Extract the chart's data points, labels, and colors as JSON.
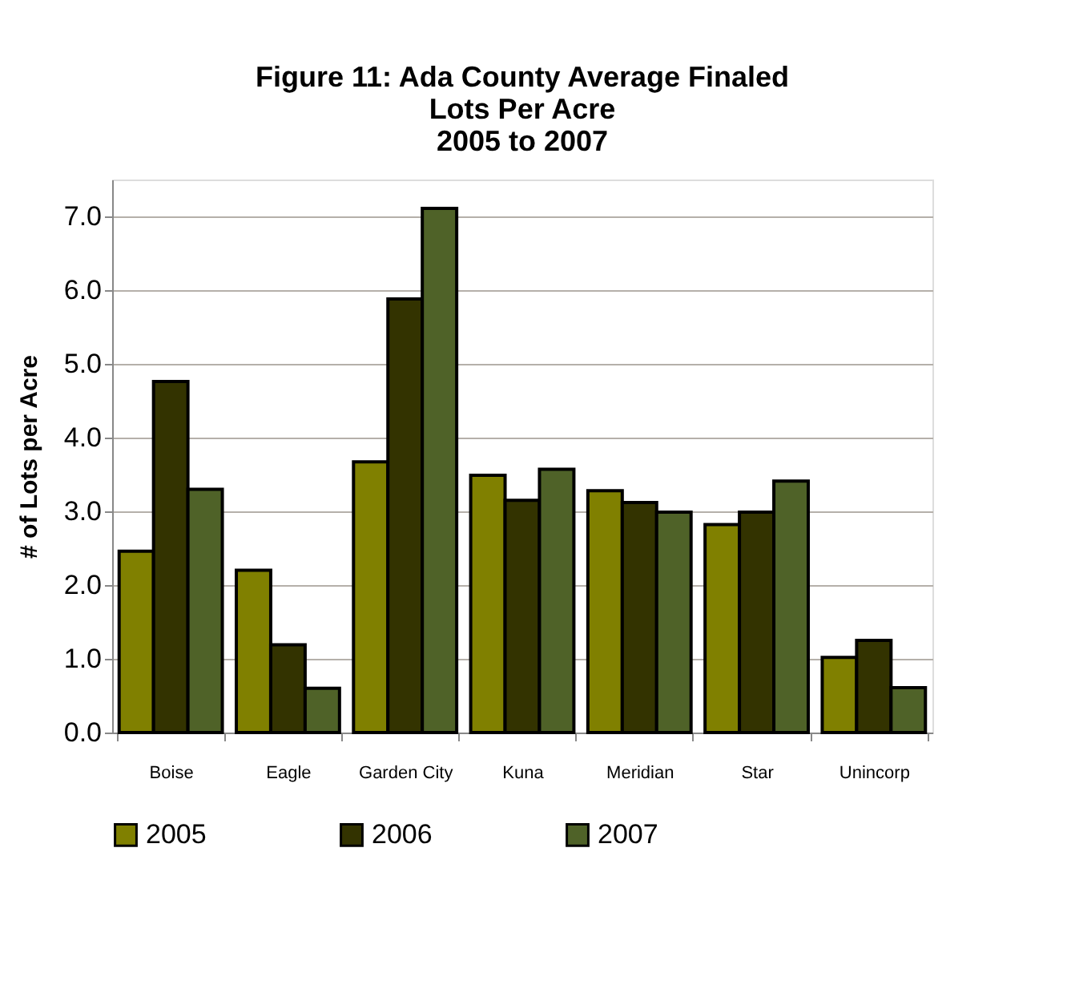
{
  "chart_data": {
    "type": "bar",
    "title": "Figure 11: Ada County Average Finaled\nLots Per Acre\n2005 to 2007",
    "ylabel": "# of Lots per Acre",
    "categories": [
      "Boise",
      "Eagle",
      "Garden City",
      "Kuna",
      "Meridian",
      "Star",
      "Unincorp"
    ],
    "series": [
      {
        "name": "2005",
        "color": "#808000",
        "values": [
          2.46,
          2.2,
          3.67,
          3.49,
          3.28,
          2.82,
          1.02
        ]
      },
      {
        "name": "2006",
        "color": "#333300",
        "values": [
          4.76,
          1.19,
          5.88,
          3.15,
          3.12,
          2.99,
          1.25
        ]
      },
      {
        "name": "2007",
        "color": "#4f6228",
        "values": [
          3.3,
          0.6,
          7.11,
          3.57,
          2.99,
          3.41,
          0.61
        ]
      }
    ],
    "ylim": [
      0,
      7.5
    ],
    "yticks": [
      {
        "value": 0,
        "label": "0.0"
      },
      {
        "value": 1,
        "label": "1.0"
      },
      {
        "value": 2,
        "label": "2.0"
      },
      {
        "value": 3,
        "label": "3.0"
      },
      {
        "value": 4,
        "label": "4.0"
      },
      {
        "value": 5,
        "label": "5.0"
      },
      {
        "value": 6,
        "label": "6.0"
      },
      {
        "value": 7,
        "label": "7.0"
      }
    ],
    "grid": "y",
    "legend": "bottom"
  }
}
